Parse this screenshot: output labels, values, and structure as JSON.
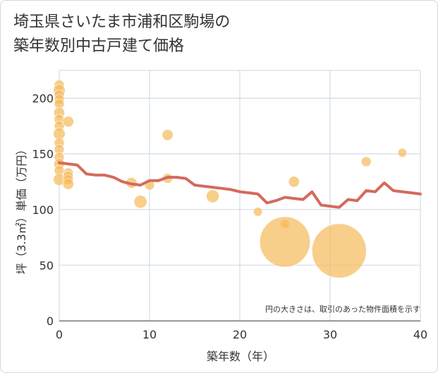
{
  "chart_data": {
    "type": "scatter",
    "title_lines": [
      "埼玉県さいたま市浦和区駒場の",
      "築年数別中古戸建て価格"
    ],
    "xlabel": "築年数（年）",
    "ylabel": "坪（3.3㎡）単価（万円）",
    "xlim": [
      0,
      40
    ],
    "ylim": [
      0,
      225
    ],
    "x_ticks": [
      0,
      10,
      20,
      30,
      40
    ],
    "y_ticks": [
      0,
      50,
      100,
      150,
      200
    ],
    "note": "円の大きさは、取引のあった物件面積を示す",
    "colors": {
      "bubble": "#f5b95a",
      "line": "#d46a5c",
      "grid": "#c9d7e3"
    },
    "scatter_points": [
      {
        "x": 0,
        "y": 212,
        "s": 1
      },
      {
        "x": 0,
        "y": 207,
        "s": 1.2
      },
      {
        "x": 0,
        "y": 203,
        "s": 1
      },
      {
        "x": 0,
        "y": 199,
        "s": 1
      },
      {
        "x": 0,
        "y": 195,
        "s": 1
      },
      {
        "x": 0,
        "y": 187,
        "s": 1.1
      },
      {
        "x": 0,
        "y": 181,
        "s": 1
      },
      {
        "x": 0,
        "y": 175,
        "s": 1
      },
      {
        "x": 0,
        "y": 168,
        "s": 1.2
      },
      {
        "x": 0,
        "y": 160,
        "s": 1
      },
      {
        "x": 0,
        "y": 154,
        "s": 1
      },
      {
        "x": 0,
        "y": 147,
        "s": 1
      },
      {
        "x": 0,
        "y": 141,
        "s": 1.1
      },
      {
        "x": 0,
        "y": 135,
        "s": 1
      },
      {
        "x": 0,
        "y": 127,
        "s": 1.2
      },
      {
        "x": 1,
        "y": 179,
        "s": 1.1
      },
      {
        "x": 1,
        "y": 133,
        "s": 1
      },
      {
        "x": 1,
        "y": 130,
        "s": 1
      },
      {
        "x": 1,
        "y": 127,
        "s": 1
      },
      {
        "x": 1,
        "y": 123,
        "s": 1.1
      },
      {
        "x": 8,
        "y": 124,
        "s": 1.1
      },
      {
        "x": 9,
        "y": 107,
        "s": 1.3
      },
      {
        "x": 10,
        "y": 122,
        "s": 1
      },
      {
        "x": 12,
        "y": 167,
        "s": 1.1
      },
      {
        "x": 12,
        "y": 128,
        "s": 1
      },
      {
        "x": 17,
        "y": 112,
        "s": 1.3
      },
      {
        "x": 22,
        "y": 98,
        "s": 0.9
      },
      {
        "x": 25,
        "y": 87,
        "s": 0.9
      },
      {
        "x": 25,
        "y": 71,
        "s": 5.1
      },
      {
        "x": 26,
        "y": 125,
        "s": 1.1
      },
      {
        "x": 31,
        "y": 63,
        "s": 5.5
      },
      {
        "x": 34,
        "y": 143,
        "s": 1
      },
      {
        "x": 38,
        "y": 151,
        "s": 0.9
      }
    ],
    "trend_line": [
      {
        "x": 0,
        "y": 142
      },
      {
        "x": 1,
        "y": 141
      },
      {
        "x": 2,
        "y": 140
      },
      {
        "x": 3,
        "y": 132
      },
      {
        "x": 4,
        "y": 131
      },
      {
        "x": 5,
        "y": 131
      },
      {
        "x": 6,
        "y": 129
      },
      {
        "x": 7,
        "y": 125
      },
      {
        "x": 8,
        "y": 123
      },
      {
        "x": 9,
        "y": 122
      },
      {
        "x": 10,
        "y": 126
      },
      {
        "x": 11,
        "y": 126
      },
      {
        "x": 12,
        "y": 129
      },
      {
        "x": 13,
        "y": 129
      },
      {
        "x": 14,
        "y": 128
      },
      {
        "x": 15,
        "y": 122
      },
      {
        "x": 16,
        "y": 121
      },
      {
        "x": 17,
        "y": 120
      },
      {
        "x": 18,
        "y": 119
      },
      {
        "x": 19,
        "y": 118
      },
      {
        "x": 20,
        "y": 116
      },
      {
        "x": 21,
        "y": 115
      },
      {
        "x": 22,
        "y": 114
      },
      {
        "x": 23,
        "y": 106
      },
      {
        "x": 24,
        "y": 108
      },
      {
        "x": 25,
        "y": 111
      },
      {
        "x": 26,
        "y": 110
      },
      {
        "x": 27,
        "y": 109
      },
      {
        "x": 28,
        "y": 116
      },
      {
        "x": 29,
        "y": 104
      },
      {
        "x": 30,
        "y": 103
      },
      {
        "x": 31,
        "y": 102
      },
      {
        "x": 32,
        "y": 109
      },
      {
        "x": 33,
        "y": 108
      },
      {
        "x": 34,
        "y": 117
      },
      {
        "x": 35,
        "y": 116
      },
      {
        "x": 36,
        "y": 124
      },
      {
        "x": 37,
        "y": 117
      },
      {
        "x": 38,
        "y": 116
      },
      {
        "x": 39,
        "y": 115
      },
      {
        "x": 40,
        "y": 114
      }
    ]
  }
}
